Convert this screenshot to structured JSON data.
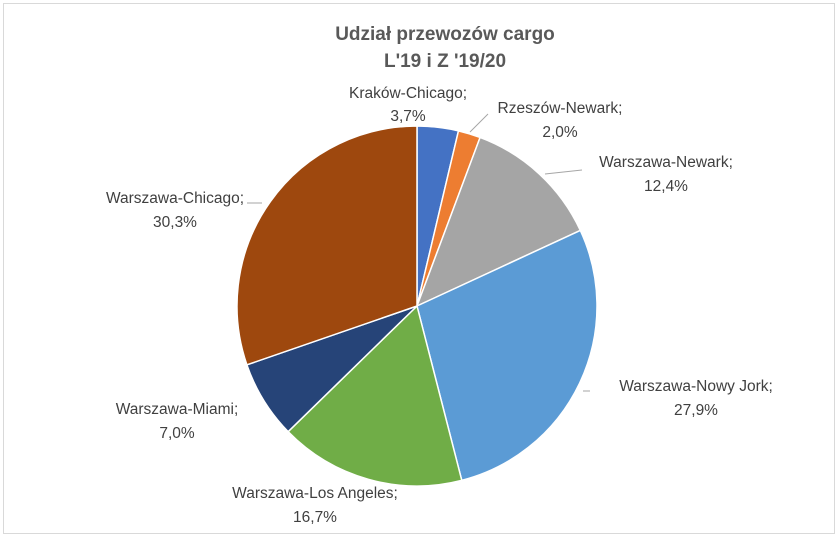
{
  "chart_data": {
    "type": "pie",
    "title_lines": [
      "Udział przewozów cargo",
      "L'19 i Z '19/20"
    ],
    "slices": [
      {
        "name": "Kraków-Chicago;",
        "value": 3.7,
        "label": "3,7%",
        "color": "#4472c4"
      },
      {
        "name": "Rzeszów-Newark;",
        "value": 2.0,
        "label": "2,0%",
        "color": "#ed7d31"
      },
      {
        "name": "Warszawa-Newark;",
        "value": 12.4,
        "label": "12,4%",
        "color": "#a5a5a5"
      },
      {
        "name": "Warszawa-Nowy Jork;",
        "value": 27.9,
        "label": "27,9%",
        "color": "#5b9bd5"
      },
      {
        "name": "Warszawa-Los Angeles;",
        "value": 16.7,
        "label": "16,7%",
        "color": "#70ad47"
      },
      {
        "name": "Warszawa-Miami;",
        "value": 7.0,
        "label": "7,0%",
        "color": "#264478"
      },
      {
        "name": "Warszawa-Chicago;",
        "value": 30.3,
        "label": "30,3%",
        "color": "#9e480e"
      }
    ]
  }
}
